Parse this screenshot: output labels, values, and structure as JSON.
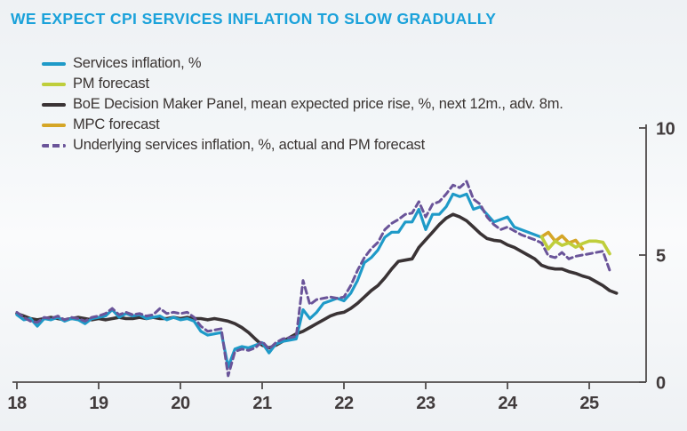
{
  "title": "WE EXPECT CPI SERVICES INFLATION TO SLOW GRADUALLY",
  "colors": {
    "title_accent": "#1ba2da",
    "services": "#1e9ac8",
    "pm_forecast": "#bfce3b",
    "dmp": "#3a3335",
    "mpc_forecast": "#d5a627",
    "underlying": "#6a5499",
    "axis": "#4f4b4b",
    "tick_label": "#413b3c"
  },
  "legend": [
    {
      "label": "Services inflation, %",
      "series_id": "services",
      "dashed": false
    },
    {
      "label": "PM forecast",
      "series_id": "pm_forecast",
      "dashed": false
    },
    {
      "label": "BoE Decision Maker Panel, mean expected price rise, %, next 12m., adv. 8m.",
      "series_id": "dmp",
      "dashed": false
    },
    {
      "label": "MPC forecast",
      "series_id": "mpc_forecast",
      "dashed": false
    },
    {
      "label": "Underlying services inflation, %, actual and PM forecast",
      "series_id": "underlying",
      "dashed": true
    }
  ],
  "chart_data": {
    "type": "line",
    "title": "WE EXPECT CPI SERVICES INFLATION TO SLOW GRADUALLY",
    "xlabel": "",
    "ylabel": "",
    "x_axis": {
      "tick_labels": [
        "18",
        "19",
        "20",
        "21",
        "22",
        "23",
        "24",
        "25"
      ],
      "tick_years": [
        2018,
        2019,
        2020,
        2021,
        2022,
        2023,
        2024,
        2025
      ],
      "min": 2017.95,
      "max": 2025.7
    },
    "y_axis": {
      "tick_labels": [
        "0",
        "5",
        "10"
      ],
      "tick_values": [
        0,
        5,
        10
      ],
      "min": 0,
      "max": 10,
      "side": "right"
    },
    "grid": false,
    "legend_position": "top-left",
    "series": [
      {
        "id": "dmp",
        "name": "BoE Decision Maker Panel, mean expected price rise, %, next 12m., adv. 8m.",
        "color": "#3a3335",
        "width": 3.6,
        "dash": null,
        "start": 2018.0,
        "step_months": 1,
        "values": [
          2.7,
          2.6,
          2.5,
          2.45,
          2.5,
          2.55,
          2.5,
          2.45,
          2.5,
          2.55,
          2.5,
          2.45,
          2.5,
          2.45,
          2.5,
          2.55,
          2.5,
          2.5,
          2.55,
          2.5,
          2.55,
          2.5,
          2.5,
          2.55,
          2.5,
          2.55,
          2.5,
          2.5,
          2.45,
          2.5,
          2.45,
          2.4,
          2.3,
          2.15,
          1.95,
          1.7,
          1.45,
          1.35,
          1.45,
          1.6,
          1.75,
          1.9,
          2.0,
          2.15,
          2.3,
          2.45,
          2.6,
          2.7,
          2.75,
          2.9,
          3.1,
          3.35,
          3.6,
          3.8,
          4.1,
          4.45,
          4.75,
          4.8,
          4.85,
          5.3,
          5.6,
          5.9,
          6.2,
          6.45,
          6.6,
          6.5,
          6.35,
          6.1,
          5.85,
          5.65,
          5.58,
          5.55,
          5.4,
          5.3,
          5.15,
          5.0,
          4.85,
          4.6,
          4.5,
          4.45,
          4.45,
          4.35,
          4.28,
          4.18,
          4.1,
          3.95,
          3.8,
          3.6,
          3.5
        ]
      },
      {
        "id": "services",
        "name": "Services inflation, %",
        "color": "#1e9ac8",
        "width": 3.2,
        "dash": null,
        "start": 2018.0,
        "step_months": 1,
        "values": [
          2.65,
          2.45,
          2.5,
          2.2,
          2.5,
          2.45,
          2.55,
          2.4,
          2.5,
          2.45,
          2.3,
          2.5,
          2.55,
          2.6,
          2.85,
          2.55,
          2.7,
          2.6,
          2.65,
          2.5,
          2.55,
          2.6,
          2.45,
          2.55,
          2.45,
          2.5,
          2.4,
          2.0,
          1.85,
          1.9,
          1.95,
          0.6,
          1.3,
          1.4,
          1.35,
          1.45,
          1.55,
          1.15,
          1.5,
          1.6,
          1.65,
          1.7,
          2.85,
          2.5,
          2.75,
          3.1,
          3.2,
          3.3,
          3.2,
          3.5,
          4.0,
          4.7,
          4.9,
          5.2,
          5.7,
          5.9,
          5.9,
          6.3,
          6.3,
          6.8,
          6.0,
          6.6,
          6.6,
          6.9,
          7.4,
          7.3,
          7.4,
          6.8,
          6.9,
          6.6,
          6.3,
          6.4,
          6.5,
          6.1,
          6.0,
          5.9,
          5.8,
          5.7
        ]
      },
      {
        "id": "mpc_forecast",
        "name": "MPC forecast",
        "color": "#d5a627",
        "width": 3.6,
        "dash": null,
        "start": 2024.417,
        "step_months": 1,
        "values": [
          5.72,
          5.89,
          5.55,
          5.75,
          5.48,
          5.58,
          5.24
        ]
      },
      {
        "id": "pm_forecast",
        "name": "PM forecast",
        "color": "#bfce3b",
        "width": 3.6,
        "dash": null,
        "start": 2024.417,
        "step_months": 1,
        "values": [
          5.72,
          5.24,
          5.55,
          5.38,
          5.48,
          5.31,
          5.45,
          5.55,
          5.55,
          5.5,
          5.05
        ]
      },
      {
        "id": "underlying",
        "name": "Underlying services inflation, %, actual and PM forecast",
        "color": "#6a5499",
        "width": 3.0,
        "dash": "7 4.5",
        "start": 2018.0,
        "step_months": 1,
        "values": [
          2.75,
          2.55,
          2.4,
          2.35,
          2.55,
          2.5,
          2.6,
          2.45,
          2.55,
          2.5,
          2.4,
          2.55,
          2.6,
          2.7,
          2.9,
          2.65,
          2.75,
          2.65,
          2.7,
          2.6,
          2.65,
          2.9,
          2.7,
          2.75,
          2.7,
          2.75,
          2.55,
          2.2,
          2.0,
          2.05,
          2.1,
          0.25,
          1.2,
          1.3,
          1.25,
          1.35,
          1.6,
          1.3,
          1.55,
          1.7,
          1.75,
          1.8,
          4.0,
          3.05,
          3.25,
          3.3,
          3.35,
          3.3,
          3.35,
          3.8,
          4.4,
          4.9,
          5.25,
          5.5,
          6.0,
          6.25,
          6.4,
          6.6,
          6.65,
          7.1,
          6.5,
          7.0,
          7.1,
          7.4,
          7.75,
          7.65,
          7.9,
          7.2,
          7.0,
          6.5,
          6.2,
          6.0,
          6.1,
          5.95,
          5.8,
          5.7,
          5.6,
          5.48,
          4.97,
          4.9,
          5.1,
          4.85,
          4.95,
          5.0,
          5.05,
          5.1,
          5.15,
          4.4
        ]
      }
    ]
  }
}
